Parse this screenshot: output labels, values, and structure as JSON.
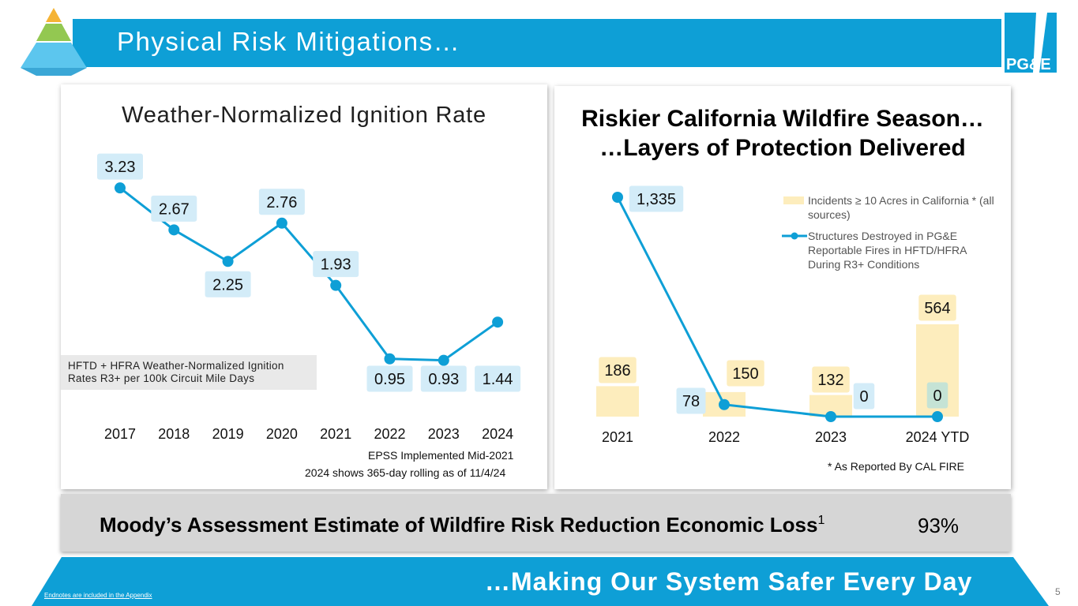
{
  "header": {
    "title": "Physical Risk Mitigations…",
    "logo_text": "PG&E"
  },
  "left_panel": {
    "title": "Weather-Normalized Ignition Rate",
    "legend": "HFTD + HFRA Weather-Normalized Ignition Rates R3+ per 100k Circuit Mile Days",
    "note1": "EPSS Implemented Mid-2021",
    "note2": "2024 shows 365-day rolling as of 11/4/24"
  },
  "right_panel": {
    "title_line1": "Riskier California Wildfire Season…",
    "title_line2": "…Layers of Protection Delivered",
    "legend_bar": "Incidents ≥ 10 Acres in California * (all sources)",
    "legend_line": "Structures Destroyed in PG&E Reportable Fires in HFTD/HFRA During R3+ Conditions",
    "footnote": "* As Reported By CAL FIRE"
  },
  "moody": {
    "label": "Moody’s Assessment Estimate of Wildfire Risk Reduction Economic Loss",
    "superscript": "1",
    "value": "93%"
  },
  "footer": {
    "tagline": "…Making Our System Safer Every Day",
    "endnote": "Endnotes are included in the Appendix",
    "page_number": "5"
  },
  "colors": {
    "blue": "#0e9fd6",
    "bar": "#fdedbd",
    "label_blue": "#d3ecf8",
    "label_green": "#c5e3d5"
  },
  "chart_data": [
    {
      "type": "line",
      "title": "Weather-Normalized Ignition Rate",
      "categories": [
        "2017",
        "2018",
        "2019",
        "2020",
        "2021",
        "2022",
        "2023",
        "2024"
      ],
      "series": [
        {
          "name": "HFTD + HFRA Weather-Normalized Ignition Rates R3+ per 100k Circuit Mile Days",
          "values": [
            3.23,
            2.67,
            2.25,
            2.76,
            1.93,
            0.95,
            0.93,
            1.44
          ]
        }
      ],
      "ylim": [
        0,
        3.5
      ]
    },
    {
      "type": "bar",
      "title": "Riskier California Wildfire Season… …Layers of Protection Delivered",
      "categories": [
        "2021",
        "2022",
        "2023",
        "2024 YTD"
      ],
      "series": [
        {
          "name": "Incidents ≥ 10 Acres in California * (all sources)",
          "type": "bar",
          "values": [
            186,
            150,
            132,
            564
          ]
        },
        {
          "name": "Structures Destroyed in PG&E Reportable Fires in HFTD/HFRA During R3+ Conditions",
          "type": "line",
          "values": [
            1335,
            78,
            0,
            0
          ],
          "labels": [
            "1,335",
            "78",
            "0",
            "0"
          ]
        }
      ]
    }
  ]
}
